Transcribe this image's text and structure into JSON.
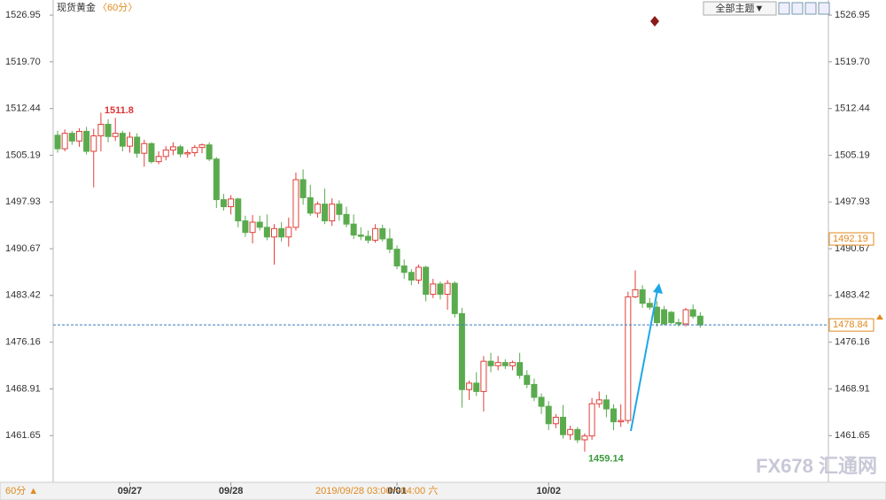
{
  "chart_data": {
    "type": "candlestick",
    "title": "现货黄金",
    "subtitle": "〈60分〉",
    "theme_button": "全部主题▼",
    "period_button": "60分 ▲",
    "watermark": "FX678 汇通网",
    "crosshair_label": "2019/09/28 03:00～04:00 六",
    "crosshair_value": 1492.19,
    "up_color": "#e0403a",
    "down_color": "#5aab4e",
    "ylim": [
      1454.4,
      1529.3
    ],
    "yticks": [
      1526.95,
      {
        "value": 1519.7,
        "label": "1519.70"
      },
      1512.44,
      1505.19,
      1497.93,
      1490.67,
      1483.42,
      1476.16,
      1468.91,
      1461.65
    ],
    "categories": [
      null,
      null,
      null,
      null,
      null,
      null,
      null,
      null,
      null,
      null,
      "09/27",
      null,
      null,
      null,
      null,
      null,
      null,
      null,
      null,
      null,
      null,
      null,
      null,
      null,
      "09/28",
      null,
      null,
      null,
      null,
      null,
      null,
      null,
      null,
      null,
      null,
      null,
      null,
      null,
      null,
      null,
      null,
      null,
      null,
      null,
      null,
      null,
      null,
      "0/01",
      null,
      null,
      null,
      null,
      null,
      null,
      null,
      null,
      null,
      null,
      null,
      null,
      null,
      null,
      null,
      null,
      null,
      null,
      null,
      null,
      "10/02",
      null,
      null,
      null,
      null,
      null,
      null,
      null,
      null,
      null,
      null,
      null,
      null,
      null,
      null,
      null,
      null,
      null,
      null,
      null,
      null,
      null
    ],
    "open": [
      1508.3,
      1506.2,
      1508.6,
      1507.4,
      1508.9,
      1505.8,
      1508.2,
      1510.0,
      1508.1,
      1508.6,
      1506.6,
      1508.0,
      1505.5,
      1507.0,
      1504.2,
      1505.0,
      1506.0,
      1506.5,
      1505.4,
      1505.6,
      1506.4,
      1506.8,
      1504.6,
      1498.3,
      1497.2,
      1498.4,
      1495.0,
      1493.2,
      1494.8,
      1494.0,
      1492.5,
      1493.8,
      1492.5,
      1494.0,
      1501.4,
      1498.6,
      1496.2,
      1497.6,
      1495.0,
      1497.6,
      1496.0,
      1494.5,
      1492.8,
      1492.6,
      1492.0,
      1493.8,
      1492.2,
      1490.6,
      1488.0,
      1487.0,
      1485.8,
      1487.8,
      1483.6,
      1485.2,
      1483.6,
      1485.3,
      1480.6,
      1468.8,
      1469.8,
      1468.5,
      1473.2,
      1472.5,
      1473.0,
      1472.5,
      1473.0,
      1471.0,
      1469.6,
      1467.6,
      1466.2,
      1463.5,
      1464.5,
      1461.8,
      1462.6,
      1461.0,
      1461.6,
      1466.6,
      1467.2,
      1465.8,
      1463.8,
      1464.0,
      1483.2,
      1484.3,
      1482.2,
      1481.6,
      1481.2,
      1480.8,
      1479.2,
      1479.0,
      1481.2,
      1480.2
    ],
    "high": [
      1509.0,
      1509.2,
      1509.0,
      1509.4,
      1509.6,
      1509.3,
      1511.8,
      1510.8,
      1511.0,
      1509.0,
      1508.8,
      1508.6,
      1507.6,
      1507.2,
      1505.8,
      1506.6,
      1507.2,
      1506.8,
      1506.0,
      1506.8,
      1507.0,
      1507.2,
      1504.9,
      1499.2,
      1499.0,
      1498.6,
      1495.8,
      1495.9,
      1495.8,
      1496.0,
      1494.5,
      1494.8,
      1495.5,
      1502.5,
      1503.0,
      1500.6,
      1498.0,
      1500.0,
      1498.5,
      1498.2,
      1497.2,
      1496.0,
      1494.0,
      1493.5,
      1494.5,
      1494.4,
      1493.8,
      1491.2,
      1489.0,
      1487.5,
      1488.2,
      1488.0,
      1486.0,
      1485.6,
      1485.8,
      1485.6,
      1481.5,
      1470.2,
      1471.5,
      1474.0,
      1474.5,
      1474.0,
      1473.5,
      1473.3,
      1474.5,
      1471.8,
      1470.5,
      1468.2,
      1467.0,
      1465.0,
      1466.4,
      1463.2,
      1463.0,
      1462.0,
      1467.5,
      1468.5,
      1468.0,
      1466.5,
      1466.5,
      1484.0,
      1487.31,
      1485.0,
      1483.0,
      1482.5,
      1481.8,
      1481.0,
      1479.8,
      1481.5,
      1482.0,
      1480.8
    ],
    "low": [
      1505.6,
      1505.8,
      1506.8,
      1506.5,
      1505.3,
      1500.2,
      1505.8,
      1507.2,
      1507.4,
      1505.8,
      1505.6,
      1504.8,
      1503.4,
      1503.9,
      1503.8,
      1504.4,
      1505.2,
      1504.9,
      1504.8,
      1505.0,
      1505.5,
      1504.3,
      1497.0,
      1496.6,
      1496.0,
      1494.0,
      1492.5,
      1491.5,
      1493.5,
      1492.0,
      1488.2,
      1491.8,
      1491.0,
      1493.5,
      1497.5,
      1495.8,
      1495.5,
      1494.5,
      1494.2,
      1495.0,
      1494.0,
      1492.2,
      1492.0,
      1491.5,
      1491.6,
      1491.8,
      1490.0,
      1487.5,
      1486.0,
      1485.0,
      1485.2,
      1482.5,
      1483.0,
      1482.8,
      1481.2,
      1480.0,
      1466.0,
      1467.2,
      1467.8,
      1465.4,
      1471.5,
      1471.8,
      1472.0,
      1471.8,
      1470.5,
      1469.0,
      1467.0,
      1465.0,
      1462.5,
      1462.8,
      1461.2,
      1461.0,
      1460.5,
      1459.14,
      1461.0,
      1466.0,
      1464.5,
      1462.5,
      1463.0,
      1463.5,
      1483.0,
      1481.5,
      1481.2,
      1478.6,
      1478.8,
      1479.0,
      1478.6,
      1478.6,
      1479.8,
      1478.4
    ],
    "close": [
      1506.2,
      1508.6,
      1507.4,
      1508.9,
      1505.8,
      1508.2,
      1510.0,
      1508.1,
      1508.6,
      1506.6,
      1508.0,
      1505.5,
      1507.0,
      1504.2,
      1505.0,
      1506.0,
      1506.5,
      1505.4,
      1505.6,
      1506.4,
      1506.8,
      1504.6,
      1498.3,
      1497.2,
      1498.4,
      1495.0,
      1493.2,
      1494.8,
      1494.0,
      1492.5,
      1493.8,
      1492.5,
      1494.0,
      1501.4,
      1498.6,
      1496.2,
      1497.6,
      1495.0,
      1497.6,
      1496.0,
      1494.5,
      1492.8,
      1492.6,
      1492.0,
      1493.8,
      1492.2,
      1490.6,
      1488.0,
      1487.0,
      1485.8,
      1487.8,
      1483.6,
      1485.2,
      1483.6,
      1485.3,
      1480.6,
      1468.8,
      1469.8,
      1468.5,
      1473.2,
      1472.5,
      1473.0,
      1472.5,
      1473.0,
      1471.0,
      1469.6,
      1467.6,
      1466.2,
      1463.5,
      1464.5,
      1461.8,
      1462.6,
      1461.0,
      1461.6,
      1466.6,
      1467.2,
      1465.8,
      1463.8,
      1464.0,
      1483.2,
      1484.3,
      1482.2,
      1481.6,
      1479.2,
      1479.0,
      1479.2,
      1479.0,
      1481.2,
      1480.2,
      1478.84
    ]
  }
}
